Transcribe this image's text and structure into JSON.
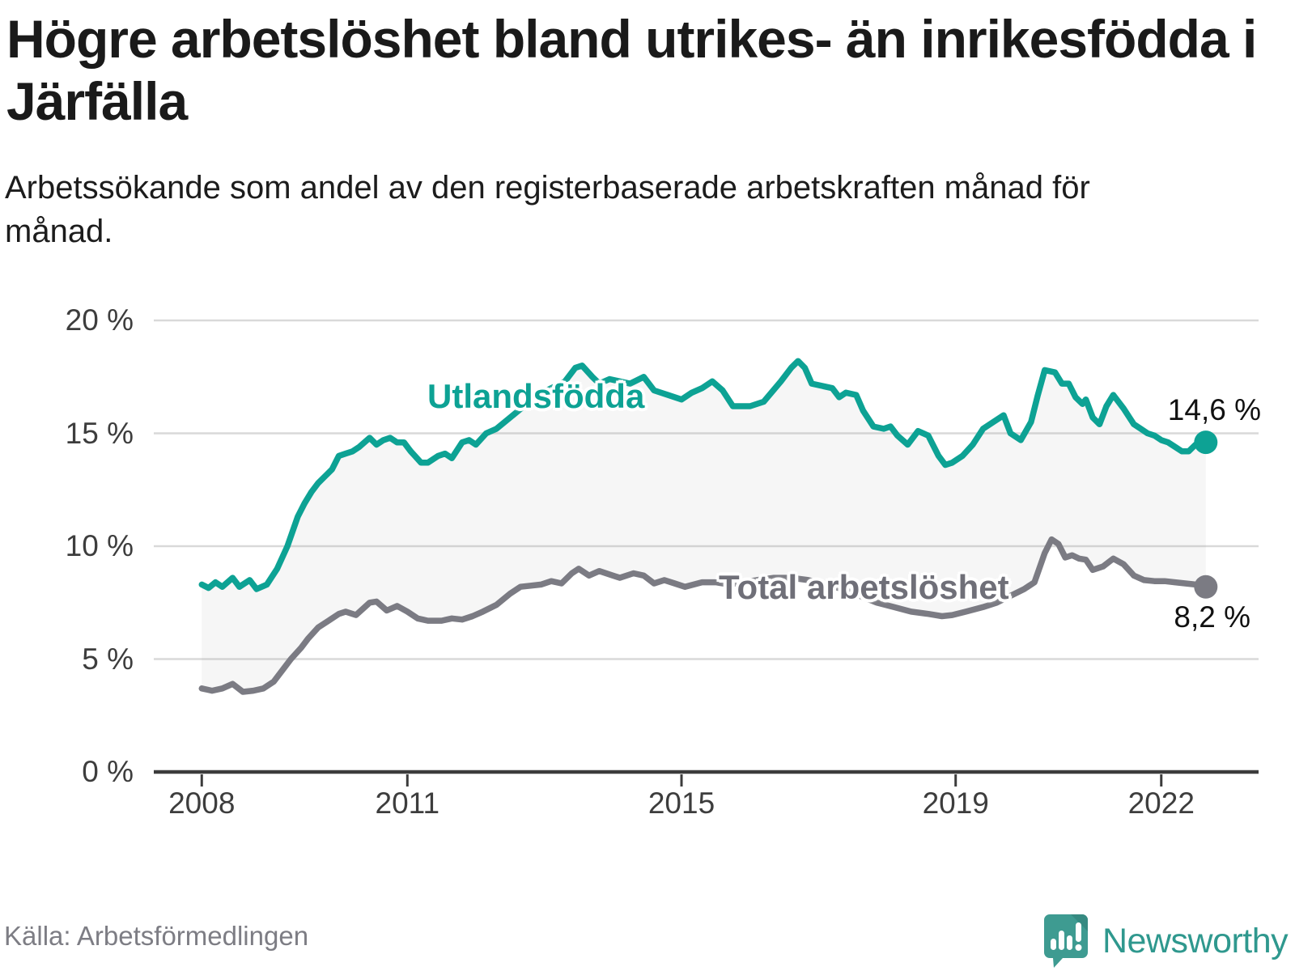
{
  "title": "Högre arbetslöshet bland utrikes- än inrikesfödda i Järfälla",
  "subtitle": "Arbetssökande som andel av den registerbaserade arbetskraften månad för månad.",
  "source": "Källa: Arbetsförmedlingen",
  "brand": {
    "name": "Newsworthy",
    "logo_icon": "speech-bubble-bar-chart-exclamation",
    "color": "#2f988e",
    "bubble_color": "#3e9b91"
  },
  "colors": {
    "foreign_born_line": "#0da294",
    "total_line": "#7b7b83",
    "band_fill": "#8a8a8a",
    "band_opacity": "0.08",
    "gridline": "#d9d9d9",
    "axis": "#3c3c3c",
    "tick_text": "#3d3d3d",
    "end_label_text": "#111111",
    "title_text": "#1a1a1a"
  },
  "chart_data": {
    "type": "line",
    "title": "Högre arbetslöshet bland utrikes- än inrikesfödda i Järfälla",
    "subtitle": "Arbetssökande som andel av den registerbaserade arbetskraften månad för månad.",
    "xlabel": "",
    "ylabel": "",
    "grid": "horizontal",
    "legend_position": "inline-labels",
    "xlim": [
      2007.3,
      2023.42
    ],
    "ylim": [
      0,
      20
    ],
    "x_ticks": [
      {
        "value": 2008,
        "label": "2008"
      },
      {
        "value": 2011,
        "label": "2011"
      },
      {
        "value": 2015,
        "label": "2015"
      },
      {
        "value": 2019,
        "label": "2019"
      },
      {
        "value": 2022,
        "label": "2022"
      }
    ],
    "y_ticks": [
      {
        "value": 0,
        "label": "0 %"
      },
      {
        "value": 5,
        "label": "5 %"
      },
      {
        "value": 10,
        "label": "10 %"
      },
      {
        "value": 15,
        "label": "15 %"
      },
      {
        "value": 20,
        "label": "20 %"
      }
    ],
    "series": [
      {
        "name": "Utlandsfödda",
        "color": "#0da294",
        "end_label": "14,6 %",
        "last_value": 14.6,
        "points": [
          [
            2008.0,
            8.3
          ],
          [
            2008.1,
            8.15
          ],
          [
            2008.2,
            8.4
          ],
          [
            2008.3,
            8.2
          ],
          [
            2008.45,
            8.6
          ],
          [
            2008.55,
            8.2
          ],
          [
            2008.7,
            8.5
          ],
          [
            2008.8,
            8.1
          ],
          [
            2008.95,
            8.3
          ],
          [
            2009.1,
            9.0
          ],
          [
            2009.25,
            10.0
          ],
          [
            2009.4,
            11.3
          ],
          [
            2009.5,
            11.9
          ],
          [
            2009.6,
            12.4
          ],
          [
            2009.7,
            12.8
          ],
          [
            2009.8,
            13.1
          ],
          [
            2009.9,
            13.4
          ],
          [
            2010.0,
            14.0
          ],
          [
            2010.1,
            14.1
          ],
          [
            2010.2,
            14.2
          ],
          [
            2010.3,
            14.4
          ],
          [
            2010.45,
            14.8
          ],
          [
            2010.55,
            14.5
          ],
          [
            2010.65,
            14.7
          ],
          [
            2010.75,
            14.8
          ],
          [
            2010.85,
            14.6
          ],
          [
            2010.95,
            14.6
          ],
          [
            2011.05,
            14.2
          ],
          [
            2011.2,
            13.7
          ],
          [
            2011.3,
            13.7
          ],
          [
            2011.45,
            14.0
          ],
          [
            2011.55,
            14.1
          ],
          [
            2011.65,
            13.9
          ],
          [
            2011.8,
            14.6
          ],
          [
            2011.9,
            14.7
          ],
          [
            2012.0,
            14.5
          ],
          [
            2012.15,
            15.0
          ],
          [
            2012.3,
            15.2
          ],
          [
            2012.5,
            15.7
          ],
          [
            2012.7,
            16.2
          ],
          [
            2012.9,
            16.7
          ],
          [
            2013.1,
            17.0
          ],
          [
            2013.3,
            17.3
          ],
          [
            2013.45,
            17.9
          ],
          [
            2013.55,
            18.0
          ],
          [
            2013.7,
            17.5
          ],
          [
            2013.8,
            17.2
          ],
          [
            2013.95,
            17.4
          ],
          [
            2014.1,
            17.3
          ],
          [
            2014.25,
            17.2
          ],
          [
            2014.45,
            17.5
          ],
          [
            2014.6,
            16.9
          ],
          [
            2014.8,
            16.7
          ],
          [
            2015.0,
            16.5
          ],
          [
            2015.15,
            16.8
          ],
          [
            2015.3,
            17.0
          ],
          [
            2015.45,
            17.3
          ],
          [
            2015.6,
            16.9
          ],
          [
            2015.75,
            16.2
          ],
          [
            2016.0,
            16.2
          ],
          [
            2016.2,
            16.4
          ],
          [
            2016.45,
            17.3
          ],
          [
            2016.6,
            17.9
          ],
          [
            2016.7,
            18.2
          ],
          [
            2016.8,
            17.9
          ],
          [
            2016.9,
            17.2
          ],
          [
            2017.05,
            17.1
          ],
          [
            2017.2,
            17.0
          ],
          [
            2017.3,
            16.6
          ],
          [
            2017.4,
            16.8
          ],
          [
            2017.55,
            16.7
          ],
          [
            2017.65,
            16.0
          ],
          [
            2017.8,
            15.3
          ],
          [
            2017.95,
            15.2
          ],
          [
            2018.05,
            15.3
          ],
          [
            2018.15,
            14.9
          ],
          [
            2018.3,
            14.5
          ],
          [
            2018.45,
            15.1
          ],
          [
            2018.6,
            14.9
          ],
          [
            2018.75,
            14.0
          ],
          [
            2018.85,
            13.6
          ],
          [
            2018.95,
            13.7
          ],
          [
            2019.1,
            14.0
          ],
          [
            2019.25,
            14.5
          ],
          [
            2019.4,
            15.2
          ],
          [
            2019.55,
            15.5
          ],
          [
            2019.7,
            15.8
          ],
          [
            2019.8,
            15.0
          ],
          [
            2019.95,
            14.7
          ],
          [
            2020.1,
            15.5
          ],
          [
            2020.2,
            16.7
          ],
          [
            2020.3,
            17.8
          ],
          [
            2020.45,
            17.7
          ],
          [
            2020.55,
            17.2
          ],
          [
            2020.65,
            17.2
          ],
          [
            2020.75,
            16.6
          ],
          [
            2020.85,
            16.3
          ],
          [
            2020.9,
            16.5
          ],
          [
            2021.0,
            15.7
          ],
          [
            2021.1,
            15.4
          ],
          [
            2021.2,
            16.2
          ],
          [
            2021.3,
            16.7
          ],
          [
            2021.45,
            16.1
          ],
          [
            2021.6,
            15.4
          ],
          [
            2021.7,
            15.2
          ],
          [
            2021.8,
            15.0
          ],
          [
            2021.9,
            14.9
          ],
          [
            2022.0,
            14.7
          ],
          [
            2022.1,
            14.6
          ],
          [
            2022.2,
            14.4
          ],
          [
            2022.3,
            14.2
          ],
          [
            2022.4,
            14.2
          ],
          [
            2022.5,
            14.5
          ],
          [
            2022.65,
            14.6
          ]
        ]
      },
      {
        "name": "Total arbetslöshet",
        "color": "#7b7b83",
        "end_label": "8,2 %",
        "last_value": 8.2,
        "points": [
          [
            2008.0,
            3.7
          ],
          [
            2008.15,
            3.6
          ],
          [
            2008.3,
            3.7
          ],
          [
            2008.45,
            3.9
          ],
          [
            2008.6,
            3.55
          ],
          [
            2008.75,
            3.6
          ],
          [
            2008.9,
            3.7
          ],
          [
            2009.05,
            4.0
          ],
          [
            2009.2,
            4.6
          ],
          [
            2009.3,
            5.0
          ],
          [
            2009.45,
            5.5
          ],
          [
            2009.55,
            5.9
          ],
          [
            2009.7,
            6.4
          ],
          [
            2009.85,
            6.7
          ],
          [
            2010.0,
            7.0
          ],
          [
            2010.1,
            7.1
          ],
          [
            2010.25,
            6.95
          ],
          [
            2010.45,
            7.5
          ],
          [
            2010.55,
            7.55
          ],
          [
            2010.7,
            7.15
          ],
          [
            2010.85,
            7.35
          ],
          [
            2011.0,
            7.1
          ],
          [
            2011.15,
            6.8
          ],
          [
            2011.3,
            6.7
          ],
          [
            2011.5,
            6.7
          ],
          [
            2011.65,
            6.8
          ],
          [
            2011.8,
            6.75
          ],
          [
            2011.95,
            6.9
          ],
          [
            2012.1,
            7.1
          ],
          [
            2012.3,
            7.4
          ],
          [
            2012.5,
            7.9
          ],
          [
            2012.65,
            8.2
          ],
          [
            2012.8,
            8.25
          ],
          [
            2012.95,
            8.3
          ],
          [
            2013.1,
            8.45
          ],
          [
            2013.25,
            8.35
          ],
          [
            2013.4,
            8.8
          ],
          [
            2013.5,
            9.0
          ],
          [
            2013.65,
            8.7
          ],
          [
            2013.8,
            8.9
          ],
          [
            2013.95,
            8.75
          ],
          [
            2014.1,
            8.6
          ],
          [
            2014.3,
            8.8
          ],
          [
            2014.45,
            8.7
          ],
          [
            2014.6,
            8.35
          ],
          [
            2014.75,
            8.5
          ],
          [
            2014.9,
            8.35
          ],
          [
            2015.05,
            8.2
          ],
          [
            2015.3,
            8.4
          ],
          [
            2015.5,
            8.4
          ],
          [
            2015.7,
            8.3
          ],
          [
            2015.9,
            8.4
          ],
          [
            2016.1,
            8.5
          ],
          [
            2016.35,
            8.6
          ],
          [
            2016.6,
            8.6
          ],
          [
            2016.85,
            8.5
          ],
          [
            2017.1,
            8.3
          ],
          [
            2017.35,
            8.1
          ],
          [
            2017.6,
            7.8
          ],
          [
            2017.85,
            7.5
          ],
          [
            2018.1,
            7.3
          ],
          [
            2018.35,
            7.1
          ],
          [
            2018.6,
            7.0
          ],
          [
            2018.8,
            6.9
          ],
          [
            2018.95,
            6.95
          ],
          [
            2019.15,
            7.1
          ],
          [
            2019.4,
            7.3
          ],
          [
            2019.6,
            7.5
          ],
          [
            2019.8,
            7.8
          ],
          [
            2020.0,
            8.1
          ],
          [
            2020.15,
            8.4
          ],
          [
            2020.3,
            9.7
          ],
          [
            2020.4,
            10.3
          ],
          [
            2020.5,
            10.1
          ],
          [
            2020.6,
            9.5
          ],
          [
            2020.7,
            9.6
          ],
          [
            2020.8,
            9.45
          ],
          [
            2020.9,
            9.4
          ],
          [
            2021.0,
            8.95
          ],
          [
            2021.15,
            9.1
          ],
          [
            2021.3,
            9.45
          ],
          [
            2021.45,
            9.2
          ],
          [
            2021.6,
            8.7
          ],
          [
            2021.75,
            8.5
          ],
          [
            2021.9,
            8.45
          ],
          [
            2022.05,
            8.45
          ],
          [
            2022.2,
            8.4
          ],
          [
            2022.35,
            8.35
          ],
          [
            2022.5,
            8.3
          ],
          [
            2022.65,
            8.2
          ]
        ]
      }
    ]
  }
}
